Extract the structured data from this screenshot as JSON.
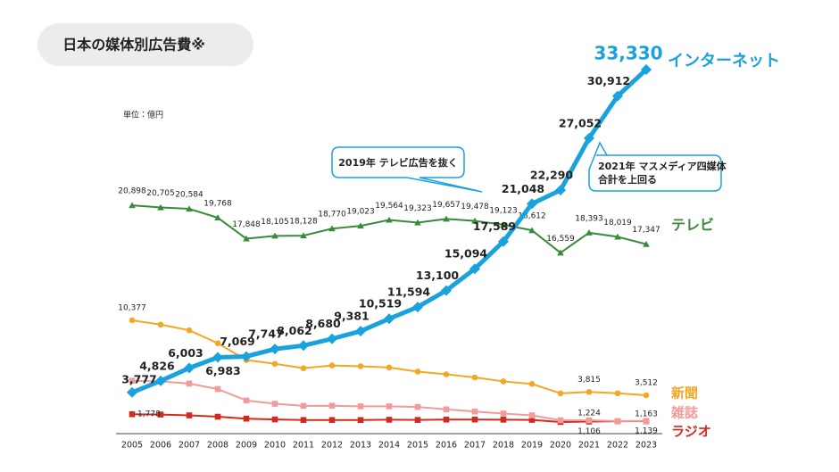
{
  "chart_data": {
    "type": "line",
    "title": "日本の媒体別広告費※",
    "unit": "単位：億円",
    "annotations": [
      [
        "2019年 テレビ広告を抜く"
      ],
      [
        "2021年 マスメディア四媒体",
        "合計を上回る"
      ]
    ],
    "categories": [
      "2005",
      "2006",
      "2007",
      "2008",
      "2009",
      "2010",
      "2011",
      "2012",
      "2013",
      "2014",
      "2015",
      "2016",
      "2017",
      "2018",
      "2019",
      "2020",
      "2021",
      "2022",
      "2023"
    ],
    "series": [
      {
        "name": "インターネット",
        "color": "#1aa2de",
        "marker": "diamond",
        "values": [
          3777,
          4826,
          6003,
          6983,
          7069,
          7747,
          8062,
          8680,
          9381,
          10519,
          11594,
          13100,
          15094,
          17589,
          21048,
          22290,
          27052,
          30912,
          33330
        ],
        "value_labels": [
          "3,777",
          "4,826",
          "6,003",
          "6,983",
          "7,069",
          "7,747",
          "8,062",
          "8,680",
          "9,381",
          "10,519",
          "11,594",
          "13,100",
          "15,094",
          "17,589",
          "21,048",
          "22,290",
          "27,052",
          "30,912",
          "33,330"
        ]
      },
      {
        "name": "テレビ",
        "color": "#3b8a3b",
        "marker": "triangle",
        "values": [
          20898,
          20705,
          20584,
          19768,
          17848,
          18105,
          18128,
          18770,
          19023,
          19564,
          19323,
          19657,
          19478,
          19123,
          18612,
          16559,
          18393,
          18019,
          17347
        ],
        "value_labels": [
          "20,898",
          "20,705",
          "20,584",
          "19,768",
          "17,848",
          "18,105",
          "18,128",
          "18,770",
          "19,023",
          "19,564",
          "19,323",
          "19,657",
          "19,478",
          "19,123",
          "18,612",
          "16,559",
          "18,393",
          "18,019",
          "17,347"
        ]
      },
      {
        "name": "新聞",
        "color": "#f5a623",
        "marker": "circle",
        "values": [
          10377,
          9986,
          9462,
          8276,
          6739,
          6396,
          5990,
          6242,
          6170,
          6057,
          5679,
          5431,
          5147,
          4784,
          4547,
          3688,
          3815,
          3697,
          3512
        ],
        "value_labels": [
          "10,377",
          null,
          null,
          null,
          null,
          null,
          null,
          null,
          null,
          null,
          null,
          null,
          null,
          null,
          null,
          null,
          "3,815",
          null,
          "3,512"
        ]
      },
      {
        "name": "雑誌",
        "color": "#f39a9a",
        "marker": "square",
        "values": [
          4842,
          4777,
          4585,
          4078,
          3034,
          2733,
          2542,
          2551,
          2499,
          2500,
          2443,
          2223,
          2023,
          1841,
          1675,
          1223,
          1224,
          1140,
          1163
        ],
        "value_labels": [
          null,
          null,
          null,
          null,
          null,
          null,
          null,
          null,
          null,
          null,
          null,
          null,
          null,
          null,
          null,
          null,
          "1,224",
          null,
          "1,163"
        ]
      },
      {
        "name": "ラジオ",
        "color": "#d42a1e",
        "marker": "square",
        "values": [
          1778,
          1744,
          1671,
          1549,
          1370,
          1299,
          1247,
          1246,
          1243,
          1272,
          1254,
          1285,
          1290,
          1278,
          1260,
          1066,
          1106,
          1129,
          1139
        ],
        "value_labels": [
          "1,778",
          null,
          null,
          null,
          null,
          null,
          null,
          null,
          null,
          null,
          null,
          null,
          null,
          null,
          null,
          null,
          "1,106",
          null,
          "1,139"
        ]
      }
    ]
  }
}
